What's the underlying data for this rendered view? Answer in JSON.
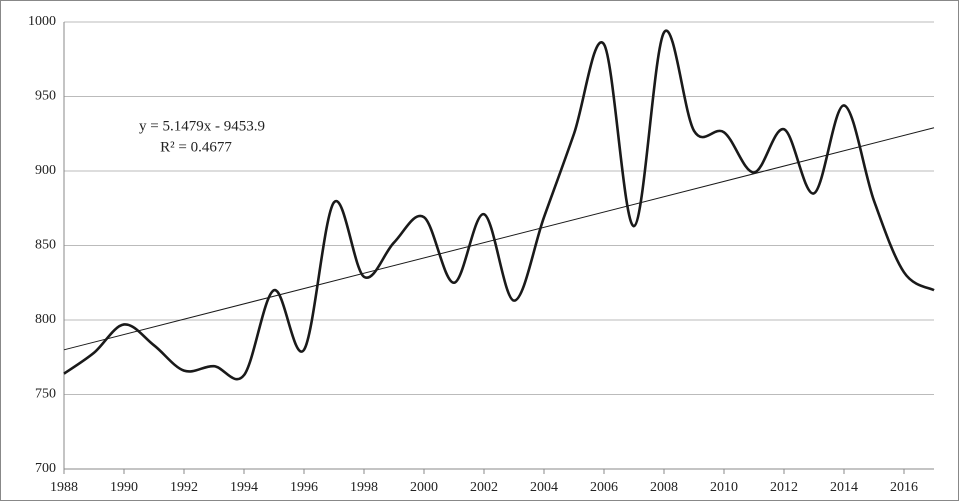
{
  "chart_data": {
    "type": "line",
    "x": [
      1988,
      1989,
      1990,
      1991,
      1992,
      1993,
      1994,
      1995,
      1996,
      1997,
      1998,
      1999,
      2000,
      2001,
      2002,
      2003,
      2004,
      2005,
      2006,
      2007,
      2008,
      2009,
      2010,
      2011,
      2012,
      2013,
      2014,
      2015,
      2016,
      2017
    ],
    "series": [
      {
        "color": "#1a1a1a",
        "values": [
          764,
          778,
          797,
          783,
          766,
          769,
          763,
          820,
          780,
          879,
          829,
          852,
          869,
          825,
          871,
          813,
          869,
          925,
          985,
          863,
          993,
          927,
          926,
          899,
          928,
          885,
          944,
          880,
          832,
          820
        ]
      }
    ],
    "trendline": {
      "x": [
        1988,
        2017
      ],
      "values": [
        780,
        929
      ],
      "color": "#1a1a1a"
    },
    "annotations": [
      "y = 5.1479x - 9453.9",
      "R² = 0.4677"
    ],
    "xlim": [
      1988,
      2017
    ],
    "xticks": [
      1988,
      1990,
      1992,
      1994,
      1996,
      1998,
      2000,
      2002,
      2004,
      2006,
      2008,
      2010,
      2012,
      2014,
      2016
    ],
    "ylim": [
      700,
      1000
    ],
    "yticks": [
      700,
      750,
      800,
      850,
      900,
      950,
      1000
    ],
    "grid": true
  }
}
